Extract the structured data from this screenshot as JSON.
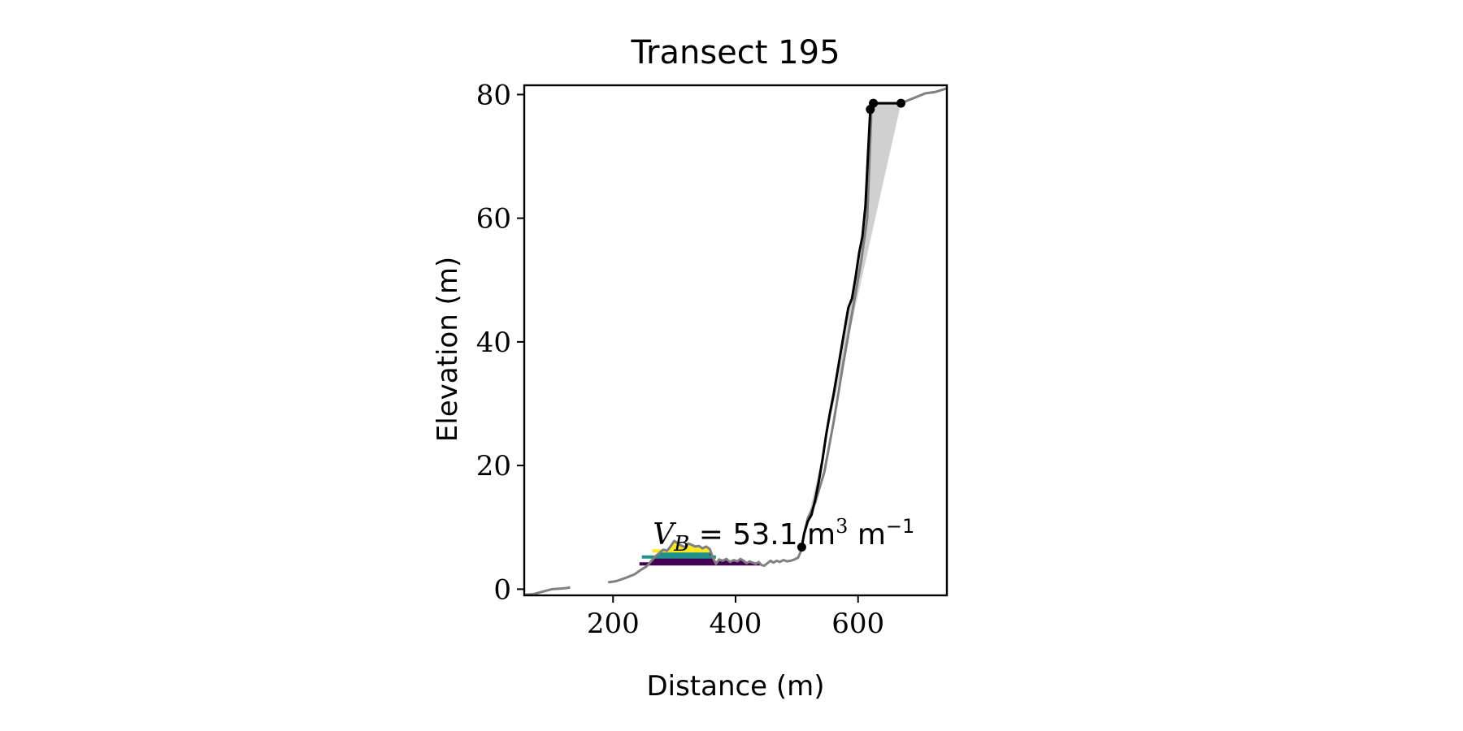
{
  "chart_data": {
    "type": "line",
    "title": "Transect 195",
    "xlabel": "Distance (m)",
    "ylabel": "Elevation (m)",
    "xlim": [
      55,
      745
    ],
    "ylim": [
      -1,
      81.5
    ],
    "xticks": [
      200,
      400,
      600
    ],
    "yticks": [
      0,
      20,
      40,
      60,
      80
    ],
    "grid": false,
    "legend": "none",
    "annotation": {
      "text_var": "V",
      "text_sub": "B",
      "text_eq": " = ",
      "text_value": "53.1",
      "text_unit_m": " m",
      "text_sup3": "3",
      "text_unit_m2": " m",
      "text_supm1": "−1",
      "x": 265,
      "y": 7.3
    },
    "series": [
      {
        "role": "profile",
        "color": "#808080",
        "segments": [
          [
            [
              55,
              -0.9
            ],
            [
              70,
              -0.8
            ],
            [
              85,
              -0.4
            ],
            [
              100,
              0.0
            ],
            [
              115,
              0.1
            ],
            [
              125,
              0.2
            ],
            [
              130,
              0.3
            ]
          ],
          [
            [
              192,
              1.1
            ],
            [
              205,
              1.3
            ],
            [
              220,
              1.8
            ],
            [
              235,
              2.4
            ],
            [
              245,
              3.1
            ],
            [
              255,
              3.7
            ],
            [
              262,
              4.5
            ],
            [
              268,
              5.2
            ],
            [
              275,
              5.8
            ],
            [
              282,
              6.4
            ],
            [
              288,
              6.2
            ],
            [
              293,
              6.8
            ],
            [
              300,
              7.8
            ],
            [
              306,
              7.4
            ],
            [
              312,
              7.0
            ],
            [
              318,
              6.8
            ],
            [
              323,
              7.4
            ],
            [
              328,
              7.2
            ],
            [
              334,
              6.9
            ],
            [
              340,
              7.0
            ],
            [
              346,
              6.6
            ],
            [
              352,
              6.9
            ],
            [
              358,
              6.5
            ],
            [
              363,
              5.1
            ],
            [
              368,
              4.1
            ],
            [
              373,
              4.8
            ],
            [
              379,
              4.6
            ],
            [
              385,
              4.9
            ],
            [
              391,
              4.4
            ],
            [
              397,
              4.7
            ],
            [
              403,
              4.5
            ],
            [
              408,
              4.9
            ],
            [
              413,
              4.6
            ],
            [
              418,
              4.2
            ],
            [
              423,
              4.5
            ],
            [
              428,
              4.3
            ],
            [
              433,
              4.1
            ],
            [
              438,
              4.4
            ],
            [
              442,
              3.9
            ],
            [
              447,
              3.8
            ],
            [
              452,
              4.2
            ],
            [
              457,
              4.6
            ],
            [
              462,
              4.3
            ],
            [
              467,
              4.6
            ],
            [
              472,
              4.4
            ],
            [
              478,
              4.7
            ],
            [
              484,
              4.5
            ],
            [
              490,
              4.6
            ],
            [
              496,
              4.8
            ],
            [
              502,
              5.1
            ],
            [
              507,
              6.2
            ],
            [
              512,
              9.0
            ],
            [
              518,
              11.5
            ],
            [
              530,
              14.0
            ],
            [
              545,
              19.0
            ],
            [
              560,
              27.0
            ],
            [
              575,
              36.0
            ],
            [
              590,
              44.5
            ],
            [
              605,
              53.0
            ],
            [
              615,
              60.0
            ],
            [
              622,
              78.0
            ],
            [
              630,
              78.6
            ],
            [
              650,
              78.6
            ],
            [
              670,
              78.6
            ],
            [
              690,
              79.4
            ],
            [
              710,
              80.2
            ],
            [
              725,
              80.4
            ],
            [
              745,
              81.0
            ]
          ]
        ]
      },
      {
        "role": "cliff-profile",
        "color": "#000000",
        "points": [
          [
            508,
            6.8
          ],
          [
            512,
            9.0
          ],
          [
            518,
            11.0
          ],
          [
            524,
            12.0
          ],
          [
            530,
            14.5
          ],
          [
            536,
            17.5
          ],
          [
            542,
            21.0
          ],
          [
            548,
            25.0
          ],
          [
            554,
            28.5
          ],
          [
            560,
            31.5
          ],
          [
            566,
            35.0
          ],
          [
            572,
            38.5
          ],
          [
            578,
            42.0
          ],
          [
            584,
            45.5
          ],
          [
            590,
            47.0
          ],
          [
            596,
            50.5
          ],
          [
            602,
            54.5
          ],
          [
            607,
            57.0
          ],
          [
            612,
            62.0
          ],
          [
            616,
            70.0
          ],
          [
            620,
            77.6
          ],
          [
            625,
            78.6
          ],
          [
            670,
            78.6
          ]
        ]
      },
      {
        "role": "reference-line",
        "color": "#d0d0d0",
        "points": [
          [
            508,
            6.8
          ],
          [
            670,
            78.6
          ]
        ]
      },
      {
        "role": "level-bar",
        "color": "#440154",
        "points": [
          [
            243,
            4.1
          ],
          [
            440,
            4.1
          ]
        ]
      },
      {
        "role": "level-bar",
        "color": "#21918c",
        "points": [
          [
            247,
            5.2
          ],
          [
            368,
            5.2
          ]
        ]
      },
      {
        "role": "level-bar",
        "color": "#fde725",
        "points": [
          [
            264,
            6.2
          ],
          [
            358,
            6.2
          ]
        ]
      }
    ],
    "markers": {
      "color": "#000000",
      "points": [
        [
          508,
          6.8
        ],
        [
          620,
          77.6
        ],
        [
          625,
          78.6
        ],
        [
          670,
          78.6
        ]
      ]
    }
  }
}
